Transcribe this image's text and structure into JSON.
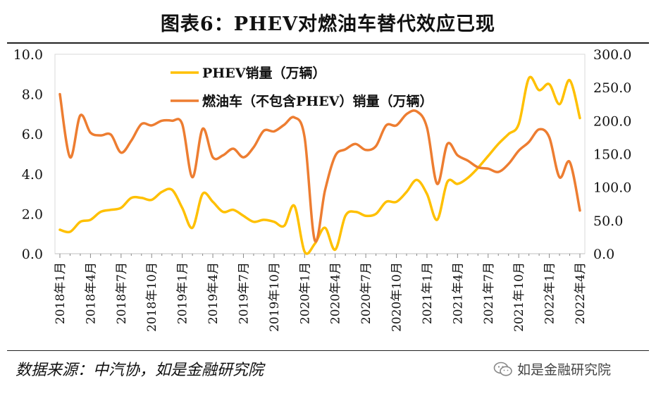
{
  "title": "图表6：PHEV对燃油车替代效应已现",
  "source": "数据来源：中汽协，如是金融研究院",
  "watermark": "如是金融研究院",
  "chart_data": {
    "type": "line",
    "left_axis": {
      "ylim": [
        0,
        10
      ],
      "ticks": [
        "0.0",
        "2.0",
        "4.0",
        "6.0",
        "8.0",
        "10.0"
      ]
    },
    "right_axis": {
      "ylim": [
        0,
        300
      ],
      "ticks": [
        "0.0",
        "50.0",
        "100.0",
        "150.0",
        "200.0",
        "250.0",
        "300.0"
      ]
    },
    "x_tick_labels": [
      "2018年1月",
      "2018年4月",
      "2018年7月",
      "2018年10月",
      "2019年1月",
      "2019年4月",
      "2019年7月",
      "2019年10月",
      "2020年1月",
      "2020年4月",
      "2020年7月",
      "2020年10月",
      "2021年1月",
      "2021年4月",
      "2021年7月",
      "2021年10月",
      "2022年1月",
      "2022年4月"
    ],
    "months": [
      "2018-01",
      "2018-02",
      "2018-03",
      "2018-04",
      "2018-05",
      "2018-06",
      "2018-07",
      "2018-08",
      "2018-09",
      "2018-10",
      "2018-11",
      "2018-12",
      "2019-01",
      "2019-02",
      "2019-03",
      "2019-04",
      "2019-05",
      "2019-06",
      "2019-07",
      "2019-08",
      "2019-09",
      "2019-10",
      "2019-11",
      "2019-12",
      "2020-01",
      "2020-02",
      "2020-03",
      "2020-04",
      "2020-05",
      "2020-06",
      "2020-07",
      "2020-08",
      "2020-09",
      "2020-10",
      "2020-11",
      "2020-12",
      "2021-01",
      "2021-02",
      "2021-03",
      "2021-04",
      "2021-05",
      "2021-06",
      "2021-07",
      "2021-08",
      "2021-09",
      "2021-10",
      "2021-11",
      "2021-12",
      "2022-01",
      "2022-02",
      "2022-03",
      "2022-04"
    ],
    "legend_position": "top-left",
    "grid": false,
    "series": [
      {
        "name": "PHEV销量（万辆）",
        "axis": "left",
        "color": "#FFC000",
        "values": [
          1.2,
          1.1,
          1.6,
          1.7,
          2.1,
          2.2,
          2.3,
          2.8,
          2.8,
          2.7,
          3.1,
          3.2,
          2.3,
          1.3,
          3.0,
          2.6,
          2.1,
          2.2,
          1.9,
          1.6,
          1.7,
          1.6,
          1.4,
          2.4,
          0.1,
          0.5,
          1.3,
          0.2,
          1.9,
          2.1,
          1.9,
          2.0,
          2.6,
          2.6,
          3.1,
          3.7,
          3.0,
          1.7,
          3.6,
          3.5,
          3.8,
          4.3,
          4.9,
          5.5,
          6.0,
          6.5,
          8.8,
          8.2,
          8.5,
          7.5,
          8.7,
          6.8
        ]
      },
      {
        "name": "燃油车（不包含PHEV）销量（万辆）",
        "axis": "right",
        "color": "#ED7D31",
        "values": [
          240,
          145,
          208,
          182,
          178,
          179,
          152,
          170,
          195,
          193,
          200,
          200,
          195,
          115,
          188,
          145,
          148,
          158,
          145,
          160,
          185,
          184,
          194,
          205,
          175,
          20,
          95,
          147,
          157,
          165,
          156,
          162,
          193,
          193,
          210,
          214,
          190,
          105,
          165,
          148,
          140,
          130,
          128,
          123,
          135,
          155,
          168,
          187,
          175,
          115,
          138,
          65
        ]
      }
    ]
  }
}
